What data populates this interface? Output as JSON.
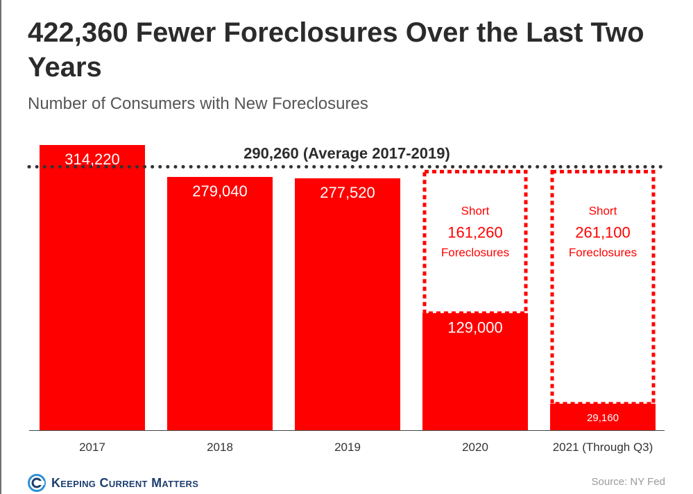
{
  "chart_data": {
    "type": "bar",
    "title": "422,360 Fewer Foreclosures Over the Last Two Years",
    "subtitle": "Number of Consumers with New Foreclosures",
    "categories": [
      "2017",
      "2018",
      "2019",
      "2020",
      "2021 (Through Q3)"
    ],
    "values": [
      314220,
      279040,
      277520,
      129000,
      29160
    ],
    "value_labels": [
      "314,220",
      "279,040",
      "277,520",
      "129,000",
      "29,160"
    ],
    "reference_line": {
      "value": 290260,
      "label": "290,260 (Average 2017-2019)"
    },
    "shortfalls": [
      {
        "category": "2020",
        "value": 161260,
        "label_top": "Short",
        "label_value": "161,260",
        "label_bottom": "Foreclosures"
      },
      {
        "category": "2021 (Through Q3)",
        "value": 261100,
        "label_top": "Short",
        "label_value": "261,100",
        "label_bottom": "Foreclosures"
      }
    ],
    "ylim": [
      0,
      314220
    ],
    "grid": false,
    "bar_color": "#ff0000"
  },
  "brand": {
    "name": "Keeping Current Matters",
    "color": "#1d3f6e",
    "icon": "kcm-logo-icon"
  },
  "source": "Source: NY Fed"
}
